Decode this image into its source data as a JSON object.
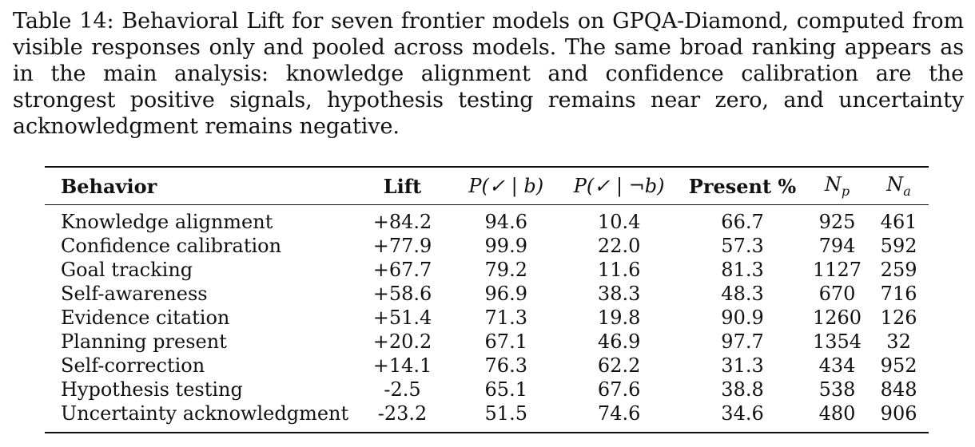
{
  "caption": "Table 14: Behavioral Lift for seven frontier models on GPQA-Diamond, computed from visible responses only and pooled across models. The same broad ranking appears as in the main analysis: knowledge alignment and confidence calibration are the strongest positive signals, hypothesis testing remains near zero, and uncertainty acknowledgment remains negative.",
  "table": {
    "headers": {
      "behavior": "Behavior",
      "lift": "Lift",
      "p_given_b": "P(✓ | b)",
      "p_given_not_b": "P(✓ | ¬b)",
      "present": "Present %",
      "np_base": "N",
      "np_sub": "p",
      "na_base": "N",
      "na_sub": "a"
    },
    "rows": [
      {
        "behavior": "Knowledge alignment",
        "lift": "+84.2",
        "p_b": "94.6",
        "p_nb": "10.4",
        "present": "66.7",
        "np": "925",
        "na": "461"
      },
      {
        "behavior": "Confidence calibration",
        "lift": "+77.9",
        "p_b": "99.9",
        "p_nb": "22.0",
        "present": "57.3",
        "np": "794",
        "na": "592"
      },
      {
        "behavior": "Goal tracking",
        "lift": "+67.7",
        "p_b": "79.2",
        "p_nb": "11.6",
        "present": "81.3",
        "np": "1127",
        "na": "259"
      },
      {
        "behavior": "Self-awareness",
        "lift": "+58.6",
        "p_b": "96.9",
        "p_nb": "38.3",
        "present": "48.3",
        "np": "670",
        "na": "716"
      },
      {
        "behavior": "Evidence citation",
        "lift": "+51.4",
        "p_b": "71.3",
        "p_nb": "19.8",
        "present": "90.9",
        "np": "1260",
        "na": "126"
      },
      {
        "behavior": "Planning present",
        "lift": "+20.2",
        "p_b": "67.1",
        "p_nb": "46.9",
        "present": "97.7",
        "np": "1354",
        "na": "32"
      },
      {
        "behavior": "Self-correction",
        "lift": "+14.1",
        "p_b": "76.3",
        "p_nb": "62.2",
        "present": "31.3",
        "np": "434",
        "na": "952"
      },
      {
        "behavior": "Hypothesis testing",
        "lift": "-2.5",
        "p_b": "65.1",
        "p_nb": "67.6",
        "present": "38.8",
        "np": "538",
        "na": "848"
      },
      {
        "behavior": "Uncertainty acknowledgment",
        "lift": "-23.2",
        "p_b": "51.5",
        "p_nb": "74.6",
        "present": "34.6",
        "np": "480",
        "na": "906"
      }
    ]
  }
}
